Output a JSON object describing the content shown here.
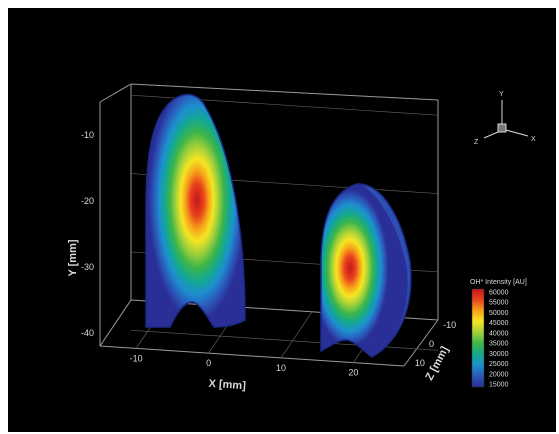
{
  "chart_data": {
    "type": "volume-3d",
    "title": "",
    "x_axis": {
      "label": "X [mm]",
      "ticks": [
        -10,
        0,
        10,
        20
      ],
      "range": [
        -15,
        27
      ]
    },
    "y_axis": {
      "label": "Y [mm]",
      "ticks": [
        -10,
        -20,
        -30,
        -40
      ],
      "range": [
        -42,
        -5
      ]
    },
    "z_axis": {
      "label": "Z [mm]",
      "ticks": [
        -10,
        0,
        10
      ],
      "range": [
        -12,
        12
      ]
    },
    "orientation_triad": {
      "x": "X",
      "y": "Y",
      "z": "Z"
    },
    "colorbar": {
      "title": "OH* Intensity [AU]",
      "levels": [
        60000,
        55000,
        50000,
        45000,
        40000,
        35000,
        30000,
        25000,
        20000,
        15000
      ],
      "colors": [
        "#c4161c",
        "#e8431c",
        "#f7a21a",
        "#f5e622",
        "#a6d13a",
        "#3cb54a",
        "#13a98f",
        "#1d8fd0",
        "#2b55b8",
        "#2a2f98"
      ]
    },
    "flames": [
      {
        "name": "",
        "x_center_mm": 0,
        "peak_intensity": 60000,
        "tip_y_mm": -7,
        "base_y_mm": -40
      },
      {
        "name": "",
        "x_center_mm": 20,
        "peak_intensity": 60000,
        "tip_y_mm": -16,
        "base_y_mm": -41
      }
    ],
    "background": "#000000",
    "grid": true
  }
}
